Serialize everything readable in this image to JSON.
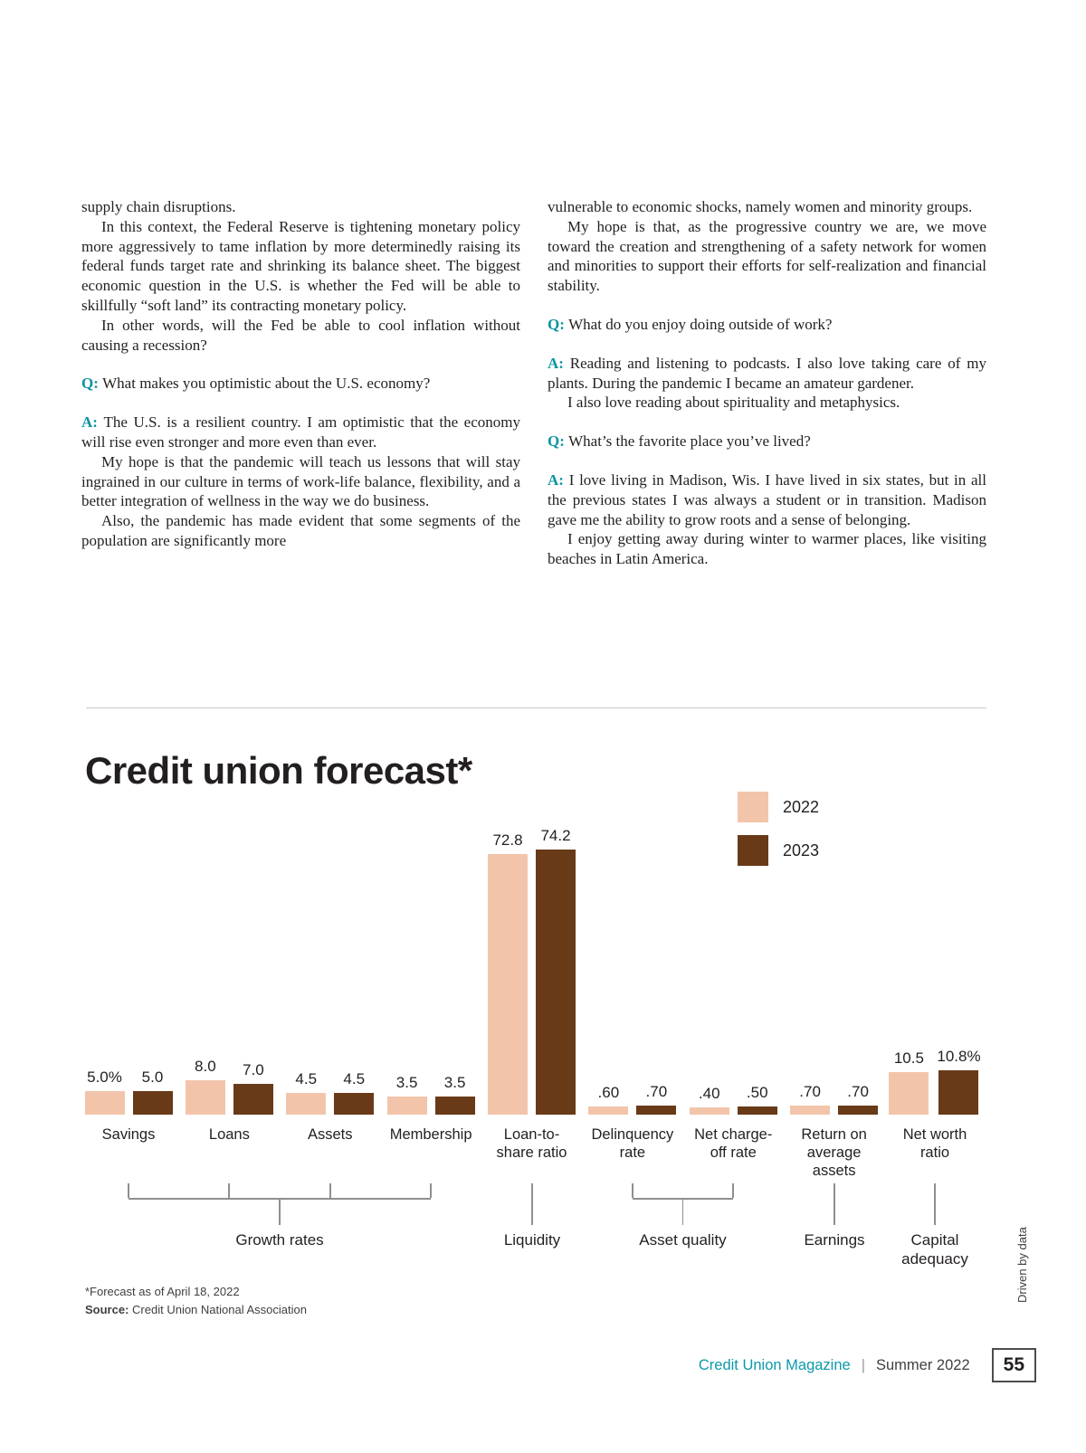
{
  "article": {
    "columns": [
      {
        "blocks": [
          {
            "text": "supply chain disruptions."
          },
          {
            "indent": true,
            "text": "In this context, the Federal Reserve is tightening monetary policy more aggressively to tame inflation by more determinedly raising its federal funds target rate and shrinking its balance sheet. The biggest economic question in the U.S. is whether the Fed will be able to skillfully “soft land” its contracting monetary policy."
          },
          {
            "indent": true,
            "text": "In other words, will the Fed be able to cool inflation without causing a recession?"
          },
          {
            "prefix": "Q:",
            "space_before": true,
            "text": "What makes you optimistic about the U.S. economy?"
          },
          {
            "prefix": "A:",
            "space_before": true,
            "text": "The U.S. is a resilient country. I am optimistic that the economy will rise even stronger and more even than ever."
          },
          {
            "indent": true,
            "text": "My hope is that the pandemic will teach us lessons that will stay ingrained in our culture in terms of work-life balance, flexibility, and a better integration of wellness in the way we do business."
          },
          {
            "indent": true,
            "text": "Also, the pandemic has made evident that some segments of the population are significantly more"
          }
        ]
      },
      {
        "blocks": [
          {
            "text": "vulnerable to economic shocks, namely women and minority groups."
          },
          {
            "indent": true,
            "text": "My hope is that, as the progressive country we are, we move toward the creation and strengthening of a safety network for women and minorities to support their efforts for self-realization and financial stability."
          },
          {
            "prefix": "Q:",
            "space_before": true,
            "text": "What do you enjoy doing outside of work?"
          },
          {
            "prefix": "A:",
            "space_before": true,
            "text": "Reading and listening to podcasts. I also love taking care of my plants. During the pandemic I became an amateur gardener."
          },
          {
            "indent": true,
            "text": "I also love reading about spirituality and metaphysics."
          },
          {
            "prefix": "Q:",
            "space_before": true,
            "text": "What’s the favorite place you’ve lived?"
          },
          {
            "prefix": "A:",
            "space_before": true,
            "text": "I love living in Madison, Wis. I have lived in six states, but in all the previous states I was always a student or in transition. Madison gave me the ability to grow roots and a sense of belonging."
          },
          {
            "indent": true,
            "text": "I enjoy getting away during winter to warmer places, like visiting beaches in Latin America."
          }
        ]
      }
    ]
  },
  "chart": {
    "title": "Credit union forecast*",
    "footnote": "*Forecast as of April 18, 2022",
    "source_label": "Source:",
    "source_text": "Credit Union National Association"
  },
  "chart_data": {
    "type": "bar",
    "title": "Credit union forecast*",
    "categories": [
      "Savings",
      "Loans",
      "Assets",
      "Membership",
      "Loan-to-share ratio",
      "Delinquency rate",
      "Net charge-off rate",
      "Return on average assets",
      "Net worth ratio"
    ],
    "category_display": [
      "Savings",
      "Loans",
      "Assets",
      "Membership",
      "Loan-to-\nshare ratio",
      "Delinquency\nrate",
      "Net charge-\noff rate",
      "Return on\naverage\nassets",
      "Net worth\nratio"
    ],
    "series": [
      {
        "name": "2022",
        "color": "#f2c5ab",
        "values": [
          5.0,
          8.0,
          4.5,
          3.5,
          72.8,
          0.6,
          0.4,
          0.7,
          10.5
        ],
        "value_labels": [
          "5.0%",
          "8.0",
          "4.5",
          "3.5",
          "72.8",
          ".60",
          ".40",
          ".70",
          "10.5"
        ]
      },
      {
        "name": "2023",
        "color": "#683a18",
        "values": [
          5.0,
          7.0,
          4.5,
          3.5,
          74.2,
          0.7,
          0.5,
          0.7,
          10.8
        ],
        "value_labels": [
          "5.0",
          "7.0",
          "4.5",
          "3.5",
          "74.2",
          ".70",
          ".50",
          ".70",
          "10.8%"
        ]
      }
    ],
    "group_brackets": [
      {
        "label": "Growth rates",
        "span": [
          0,
          3
        ]
      },
      {
        "label": "Liquidity",
        "span": [
          4,
          4
        ]
      },
      {
        "label": "Asset quality",
        "span": [
          5,
          6
        ]
      },
      {
        "label": "Earnings",
        "span": [
          7,
          7
        ]
      },
      {
        "label": "Capital adequacy",
        "span": [
          8,
          8
        ]
      }
    ],
    "ylim": [
      0,
      80
    ],
    "grid": false,
    "legend_position": "top-right",
    "value_labels_shown": true
  },
  "colors": {
    "series_2022": "#f2c5ab",
    "series_2023": "#683a18",
    "accent_teal": "#0b93a2"
  },
  "footer": {
    "magazine": "Credit Union Magazine",
    "separator": "|",
    "issue": "Summer 2022",
    "page_number": "55"
  },
  "side_label": "Driven by data"
}
